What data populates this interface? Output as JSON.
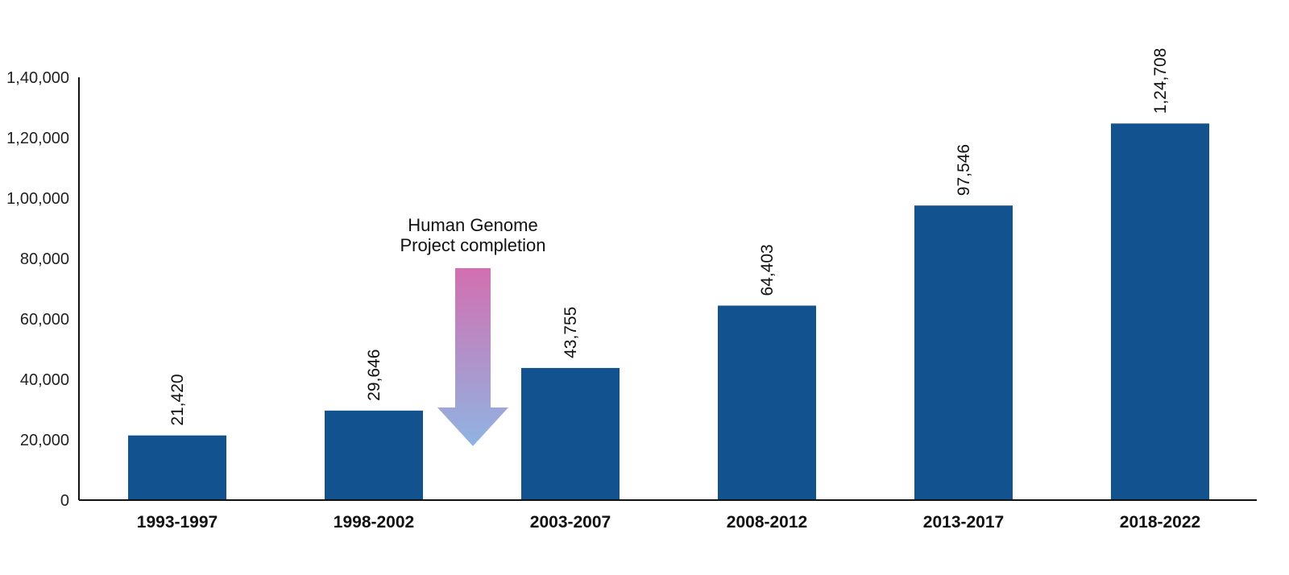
{
  "chart_data": {
    "type": "bar",
    "title": "",
    "xlabel": "",
    "ylabel": "",
    "categories": [
      "1993-1997",
      "1998-2002",
      "2003-2007",
      "2008-2012",
      "2013-2017",
      "2018-2022"
    ],
    "values": [
      21420,
      29646,
      43755,
      64403,
      97546,
      124708
    ],
    "value_labels": [
      "21,420",
      "29,646",
      "43,755",
      "64,403",
      "97,546",
      "1,24,708"
    ],
    "ylim": [
      0,
      140000
    ],
    "yticks": [
      0,
      20000,
      40000,
      60000,
      80000,
      100000,
      120000,
      140000
    ],
    "ytick_labels": [
      "0",
      "20,000",
      "40,000",
      "60,000",
      "80,000",
      "1,00,000",
      "1,20,000",
      "1,40,000"
    ],
    "grid": false,
    "bar_color": "#12538f",
    "annotation": {
      "lines": [
        "Human Genome",
        "Project completion"
      ],
      "between_categories": [
        "1998-2002",
        "2003-2007"
      ],
      "arrow_gradient": [
        "#d36fb0",
        "#8fb4e2"
      ]
    }
  }
}
